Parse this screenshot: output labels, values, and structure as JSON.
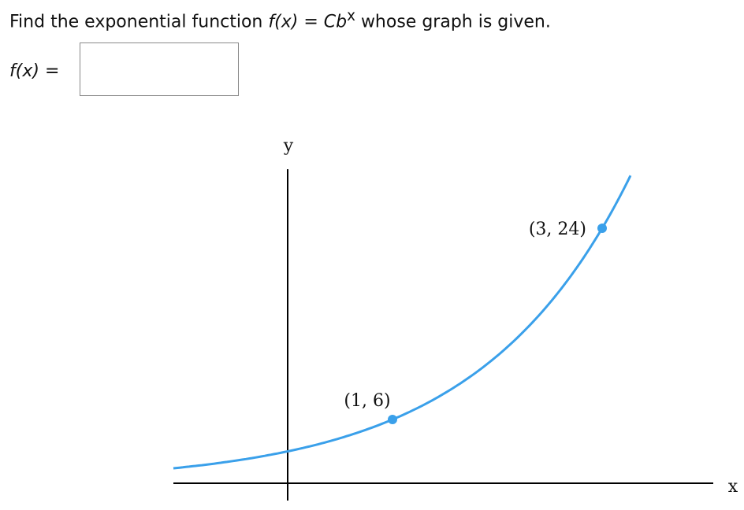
{
  "question": {
    "prefix": "Find the exponential function",
    "function": "f(x)",
    "equals": "=",
    "formula_base": "Cb",
    "formula_exponent": "x",
    "suffix": "whose graph is given."
  },
  "answer": {
    "label": "f(x)",
    "equals": "="
  },
  "graph": {
    "x_axis_label": "x",
    "y_axis_label": "y",
    "points": [
      {
        "x": 1,
        "y": 6,
        "label": "(1, 6)"
      },
      {
        "x": 3,
        "y": 24,
        "label": "(3, 24)"
      }
    ]
  }
}
